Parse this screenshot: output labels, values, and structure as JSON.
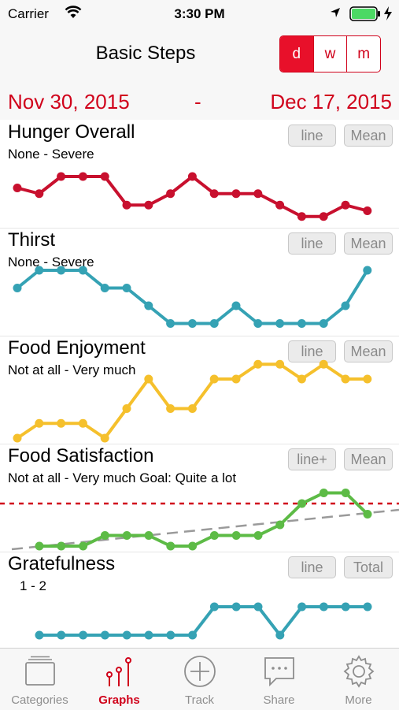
{
  "status_bar": {
    "carrier": "Carrier",
    "time": "3:30 PM"
  },
  "nav": {
    "title": "Basic Steps",
    "segments": [
      "d",
      "w",
      "m"
    ],
    "selected": "d"
  },
  "date_range": {
    "start": "Nov 30, 2015",
    "separator": "-",
    "end": "Dec 17, 2015"
  },
  "colors": {
    "accent": "#d0021b",
    "hunger": "#c8102e",
    "thirst": "#35a2b4",
    "enjoyment": "#f5c02c",
    "satisfaction": "#5dbb46",
    "gratefulness": "#35a2b4"
  },
  "panels": [
    {
      "title": "Hunger Overall",
      "subtitle": "None - Severe",
      "btn1": "line",
      "btn2": "Mean",
      "color": "#c8102e",
      "values": [
        3,
        2.5,
        4,
        4,
        4,
        1.5,
        1.5,
        2.5,
        4,
        2.5,
        2.5,
        2.5,
        1.5,
        0.5,
        0.5,
        1.5,
        1
      ]
    },
    {
      "title": "Thirst",
      "subtitle": "None - Severe",
      "btn1": "line",
      "btn2": "Mean",
      "color": "#35a2b4",
      "values": [
        3,
        4,
        4,
        4,
        3,
        3,
        2,
        1,
        1,
        1,
        2,
        1,
        1,
        1,
        1,
        2,
        4
      ]
    },
    {
      "title": "Food Enjoyment",
      "subtitle": "Not at all - Very much",
      "btn1": "line",
      "btn2": "Mean",
      "color": "#f5c02c",
      "values": [
        0,
        0.5,
        0.5,
        0.5,
        0,
        1,
        2,
        1,
        1,
        2,
        2,
        2.5,
        2.5,
        2,
        2.5,
        2,
        2
      ]
    },
    {
      "title": "Food Satisfaction",
      "subtitle": "Not at all - Very much Goal: Quite a lot",
      "btn1": "line+",
      "btn2": "Mean",
      "color": "#5dbb46",
      "values": [
        0,
        0,
        0,
        0.5,
        0.5,
        0.5,
        0,
        0,
        0.5,
        0.5,
        0.5,
        1,
        2,
        2.5,
        2.5,
        1.5
      ],
      "goal": 2
    },
    {
      "title": "Gratefulness",
      "subtitle": "1 -   2",
      "btn1": "line",
      "btn2": "Total",
      "color": "#35a2b4",
      "values": [
        1,
        1,
        1,
        1,
        1,
        1,
        1,
        1,
        2,
        2,
        2,
        1,
        2,
        2,
        2,
        2
      ]
    }
  ],
  "tabs": [
    {
      "label": "Categories",
      "icon": "categories-icon"
    },
    {
      "label": "Graphs",
      "icon": "graphs-icon",
      "active": true
    },
    {
      "label": "Track",
      "icon": "plus-icon"
    },
    {
      "label": "Share",
      "icon": "share-icon"
    },
    {
      "label": "More",
      "icon": "gear-icon"
    }
  ]
}
